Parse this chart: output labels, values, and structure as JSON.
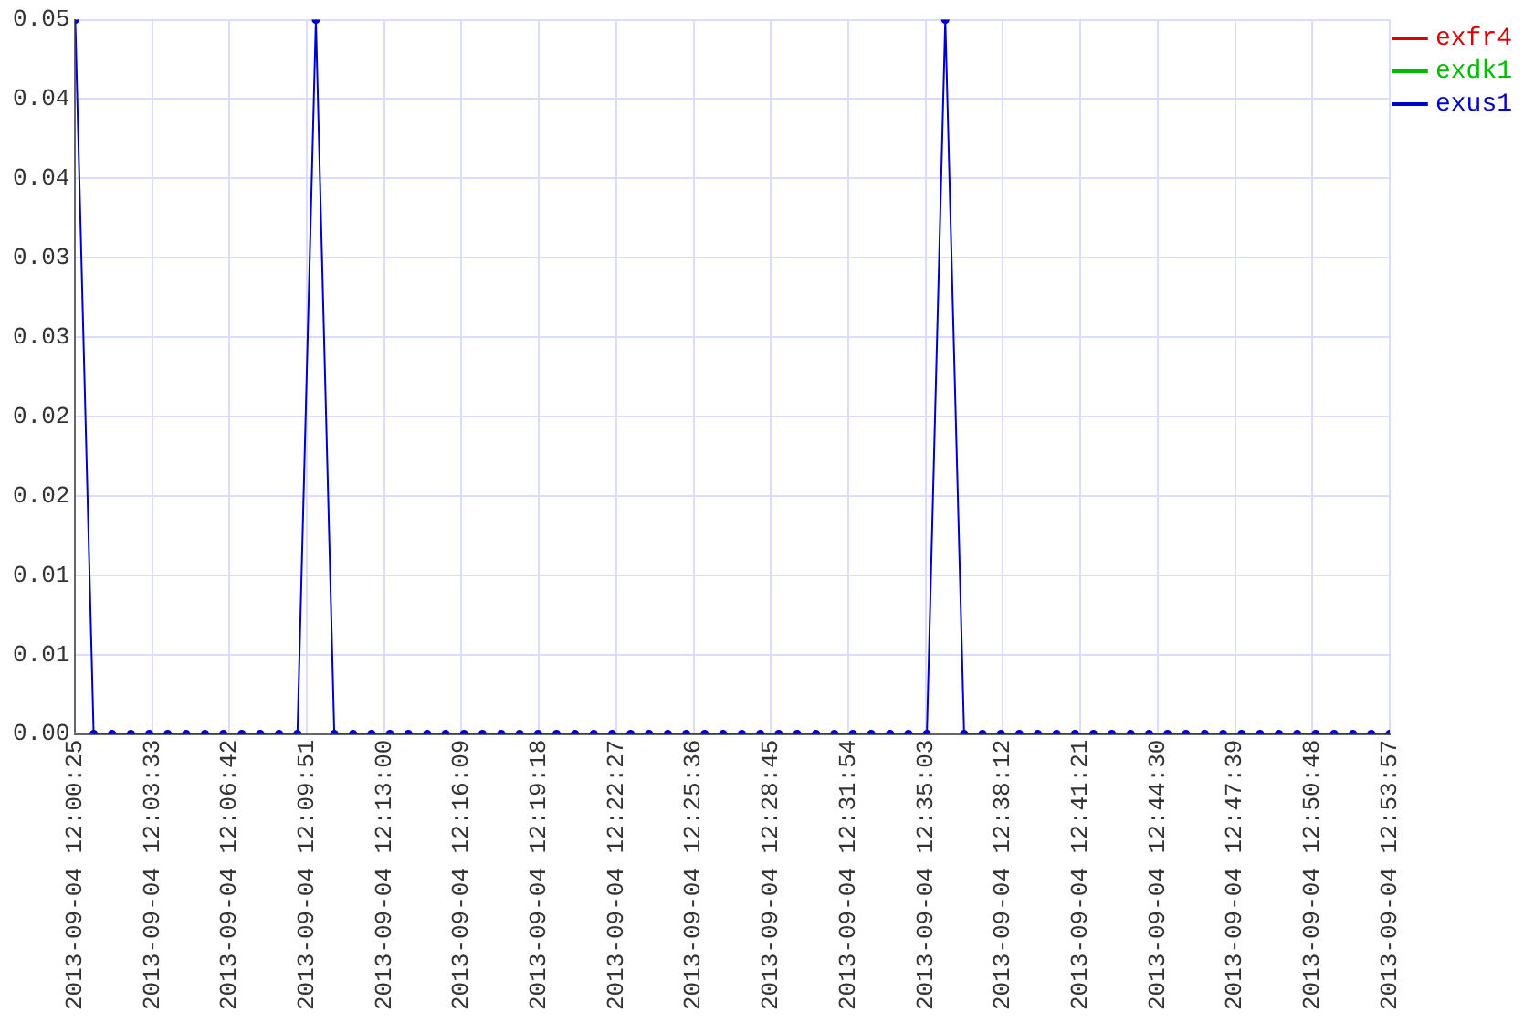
{
  "chart_data": {
    "type": "line",
    "legend": "top right",
    "grid": true,
    "marker": "circle",
    "line_style": "solid",
    "x": [
      "2013-09-04T12:00:25",
      "2013-09-04T12:01:10",
      "2013-09-04T12:01:55",
      "2013-09-04T12:02:41",
      "2013-09-04T12:03:26",
      "2013-09-04T12:04:11",
      "2013-09-04T12:04:56",
      "2013-09-04T12:05:42",
      "2013-09-04T12:06:27",
      "2013-09-04T12:07:12",
      "2013-09-04T12:07:57",
      "2013-09-04T12:08:43",
      "2013-09-04T12:09:28",
      "2013-09-04T12:10:13",
      "2013-09-04T12:10:58",
      "2013-09-04T12:11:44",
      "2013-09-04T12:12:29",
      "2013-09-04T12:13:14",
      "2013-09-04T12:13:59",
      "2013-09-04T12:14:45",
      "2013-09-04T12:15:30",
      "2013-09-04T12:16:15",
      "2013-09-04T12:17:00",
      "2013-09-04T12:17:46",
      "2013-09-04T12:18:31",
      "2013-09-04T12:19:16",
      "2013-09-04T12:20:01",
      "2013-09-04T12:20:46",
      "2013-09-04T12:21:32",
      "2013-09-04T12:22:17",
      "2013-09-04T12:23:02",
      "2013-09-04T12:23:47",
      "2013-09-04T12:24:33",
      "2013-09-04T12:25:18",
      "2013-09-04T12:26:03",
      "2013-09-04T12:26:48",
      "2013-09-04T12:27:34",
      "2013-09-04T12:28:19",
      "2013-09-04T12:29:04",
      "2013-09-04T12:29:49",
      "2013-09-04T12:30:35",
      "2013-09-04T12:31:20",
      "2013-09-04T12:32:05",
      "2013-09-04T12:32:50",
      "2013-09-04T12:33:36",
      "2013-09-04T12:34:21",
      "2013-09-04T12:35:06",
      "2013-09-04T12:35:51",
      "2013-09-04T12:36:37",
      "2013-09-04T12:37:22",
      "2013-09-04T12:38:07",
      "2013-09-04T12:38:52",
      "2013-09-04T12:39:37",
      "2013-09-04T12:40:23",
      "2013-09-04T12:41:08",
      "2013-09-04T12:41:53",
      "2013-09-04T12:42:38",
      "2013-09-04T12:43:24",
      "2013-09-04T12:44:09",
      "2013-09-04T12:44:54",
      "2013-09-04T12:45:39",
      "2013-09-04T12:46:25",
      "2013-09-04T12:47:10",
      "2013-09-04T12:47:55",
      "2013-09-04T12:48:40",
      "2013-09-04T12:49:26",
      "2013-09-04T12:50:11",
      "2013-09-04T12:50:56",
      "2013-09-04T12:51:41",
      "2013-09-04T12:52:27",
      "2013-09-04T12:53:12",
      "2013-09-04T12:53:57"
    ],
    "xlim": [
      "2013-09-04T12:00:25",
      "2013-09-04T12:53:57"
    ],
    "xticks": [
      {
        "value": "2013-09-04T12:00:25",
        "label": "2013-09-04 12:00:25"
      },
      {
        "value": "2013-09-04T12:03:33",
        "label": "2013-09-04 12:03:33"
      },
      {
        "value": "2013-09-04T12:06:42",
        "label": "2013-09-04 12:06:42"
      },
      {
        "value": "2013-09-04T12:09:51",
        "label": "2013-09-04 12:09:51"
      },
      {
        "value": "2013-09-04T12:13:00",
        "label": "2013-09-04 12:13:00"
      },
      {
        "value": "2013-09-04T12:16:09",
        "label": "2013-09-04 12:16:09"
      },
      {
        "value": "2013-09-04T12:19:18",
        "label": "2013-09-04 12:19:18"
      },
      {
        "value": "2013-09-04T12:22:27",
        "label": "2013-09-04 12:22:27"
      },
      {
        "value": "2013-09-04T12:25:36",
        "label": "2013-09-04 12:25:36"
      },
      {
        "value": "2013-09-04T12:28:45",
        "label": "2013-09-04 12:28:45"
      },
      {
        "value": "2013-09-04T12:31:54",
        "label": "2013-09-04 12:31:54"
      },
      {
        "value": "2013-09-04T12:35:03",
        "label": "2013-09-04 12:35:03"
      },
      {
        "value": "2013-09-04T12:38:12",
        "label": "2013-09-04 12:38:12"
      },
      {
        "value": "2013-09-04T12:41:21",
        "label": "2013-09-04 12:41:21"
      },
      {
        "value": "2013-09-04T12:44:30",
        "label": "2013-09-04 12:44:30"
      },
      {
        "value": "2013-09-04T12:47:39",
        "label": "2013-09-04 12:47:39"
      },
      {
        "value": "2013-09-04T12:50:48",
        "label": "2013-09-04 12:50:48"
      },
      {
        "value": "2013-09-04T12:53:57",
        "label": "2013-09-04 12:53:57"
      }
    ],
    "ylim": [
      0,
      0.045
    ],
    "yticks": [
      {
        "value": 0,
        "label": "0.00"
      },
      {
        "value": 0.005,
        "label": "0.01"
      },
      {
        "value": 0.01,
        "label": "0.01"
      },
      {
        "value": 0.015,
        "label": "0.02"
      },
      {
        "value": 0.02,
        "label": "0.02"
      },
      {
        "value": 0.025,
        "label": "0.03"
      },
      {
        "value": 0.03,
        "label": "0.03"
      },
      {
        "value": 0.035,
        "label": "0.04"
      },
      {
        "value": 0.04,
        "label": "0.04"
      },
      {
        "value": 0.045,
        "label": "0.05"
      }
    ],
    "series": [
      {
        "name": "exfr4",
        "color": "#dd0000",
        "values": [
          null,
          null,
          null,
          null,
          null,
          null,
          null,
          null,
          null,
          null,
          null,
          null,
          null,
          null,
          null,
          null,
          null,
          null,
          null,
          null,
          null,
          null,
          null,
          null,
          null,
          null,
          null,
          null,
          null,
          null,
          null,
          null,
          null,
          null,
          null,
          null,
          null,
          null,
          null,
          null,
          null,
          null,
          null,
          null,
          null,
          null,
          null,
          null,
          null,
          null,
          null,
          null,
          null,
          null,
          null,
          null,
          null,
          null,
          null,
          null,
          null,
          null,
          null,
          null,
          null,
          null,
          null,
          null,
          null,
          null,
          null,
          null
        ]
      },
      {
        "name": "exdk1",
        "color": "#00bb00",
        "values": [
          null,
          null,
          null,
          null,
          null,
          null,
          null,
          null,
          null,
          null,
          null,
          null,
          null,
          null,
          null,
          null,
          null,
          null,
          null,
          null,
          null,
          null,
          null,
          null,
          null,
          null,
          null,
          null,
          null,
          null,
          null,
          null,
          null,
          null,
          null,
          null,
          null,
          null,
          null,
          null,
          null,
          null,
          null,
          null,
          null,
          null,
          null,
          null,
          null,
          null,
          null,
          null,
          null,
          null,
          null,
          null,
          null,
          null,
          null,
          null,
          null,
          null,
          null,
          null,
          null,
          null,
          null,
          null,
          null,
          null,
          null,
          null
        ]
      },
      {
        "name": "exus1",
        "color": "#0000cc",
        "values": [
          0.045,
          0,
          0,
          0,
          0,
          0,
          0,
          0,
          0,
          0,
          0,
          0,
          0,
          0.045,
          0,
          0,
          0,
          0,
          0,
          0,
          0,
          0,
          0,
          0,
          0,
          0,
          0,
          0,
          0,
          0,
          0,
          0,
          0,
          0,
          0,
          0,
          0,
          0,
          0,
          0,
          0,
          0,
          0,
          0,
          0,
          0,
          0,
          0.045,
          0,
          0,
          0,
          0,
          0,
          0,
          0,
          0,
          0,
          0,
          0,
          0,
          0,
          0,
          0,
          0,
          0,
          0,
          0,
          0,
          0,
          0,
          0,
          0
        ]
      }
    ]
  }
}
